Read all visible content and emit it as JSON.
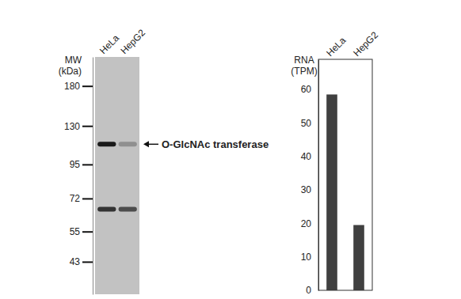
{
  "chart_data": [
    {
      "type": "western_blot",
      "y_label": "MW (kDa)",
      "categories": [
        "HeLa",
        "HepG2"
      ],
      "log": "y",
      "ylim": [
        33,
        228
      ],
      "yticks": [
        180,
        130,
        95,
        72,
        55,
        43
      ],
      "bands": [
        {
          "kda": 112,
          "values": [
            1,
            0.3
          ]
        },
        {
          "kda": 66,
          "values": [
            0.85,
            0.7
          ]
        }
      ],
      "annotations": [
        {
          "text": "O-GlcNAc transferase",
          "y": 112
        }
      ]
    },
    {
      "type": "bar",
      "y_label": "RNA (TPM)",
      "categories": [
        "HeLa",
        "HepG2"
      ],
      "values": [
        58.5,
        19.5
      ],
      "color": "#404040",
      "ylim": [
        0,
        69
      ],
      "yticks": [
        0,
        10,
        20,
        30,
        40,
        50,
        60
      ]
    }
  ]
}
